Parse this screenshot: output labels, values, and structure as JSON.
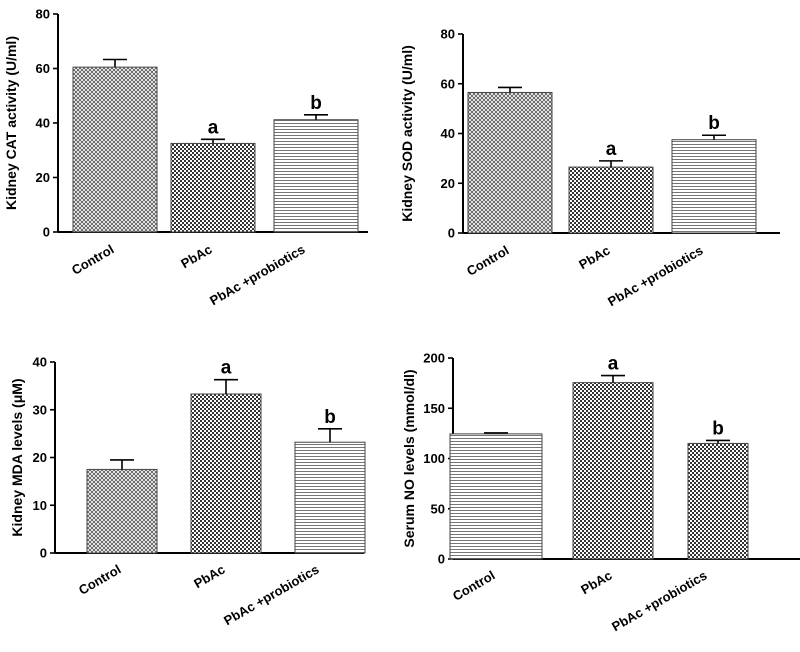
{
  "chart_data": [
    {
      "type": "bar",
      "title": "",
      "xlabel": "",
      "ylabel": "Kidney CAT activity (U/ml)",
      "ylim": [
        0,
        80
      ],
      "yticks": [
        0,
        20,
        40,
        60,
        80
      ],
      "categories": [
        "Control",
        "PbAc",
        "PbAc +probiotics"
      ],
      "values": [
        60.5,
        32.5,
        41.2
      ],
      "errors": [
        2.8,
        1.5,
        1.8
      ],
      "significance": [
        "",
        "a",
        "b"
      ],
      "patterns": [
        "crosshatch",
        "check",
        "hlines"
      ],
      "category_label_angle": -30
    },
    {
      "type": "bar",
      "title": "",
      "xlabel": "",
      "ylabel": "Kidney SOD activity (U/ml)",
      "ylim": [
        0,
        80
      ],
      "yticks": [
        0,
        20,
        40,
        60,
        80
      ],
      "categories": [
        "Control",
        "PbAc",
        "PbAc +probiotics"
      ],
      "values": [
        56.5,
        26.5,
        37.5
      ],
      "errors": [
        2.0,
        2.5,
        1.8
      ],
      "significance": [
        "",
        "a",
        "b"
      ],
      "patterns": [
        "crosshatch",
        "check",
        "hlines"
      ],
      "category_label_angle": -30
    },
    {
      "type": "bar",
      "title": "",
      "xlabel": "",
      "ylabel": "Kidney MDA levels (μM)",
      "ylim": [
        0,
        40
      ],
      "yticks": [
        0,
        10,
        20,
        30,
        40
      ],
      "categories": [
        "Control",
        "PbAc",
        "PbAc +probiotics"
      ],
      "values": [
        17.5,
        33.3,
        23.2
      ],
      "errors": [
        2.0,
        3.0,
        2.8
      ],
      "significance": [
        "",
        "a",
        "b"
      ],
      "patterns": [
        "crosshatch",
        "check",
        "hlines"
      ],
      "category_label_angle": -30
    },
    {
      "type": "bar",
      "title": "",
      "xlabel": "",
      "ylabel": "Serum NO levels (mmol/dl)",
      "ylim": [
        0,
        200
      ],
      "yticks": [
        0,
        50,
        100,
        150,
        200
      ],
      "categories": [
        "Control",
        "PbAc",
        "PbAc +probiotics"
      ],
      "values": [
        124.5,
        175.5,
        115.0
      ],
      "errors": [
        1.0,
        7.0,
        3.0
      ],
      "significance": [
        "",
        "a",
        "b"
      ],
      "patterns": [
        "hlines",
        "check",
        "check"
      ],
      "category_label_angle": -30
    }
  ]
}
